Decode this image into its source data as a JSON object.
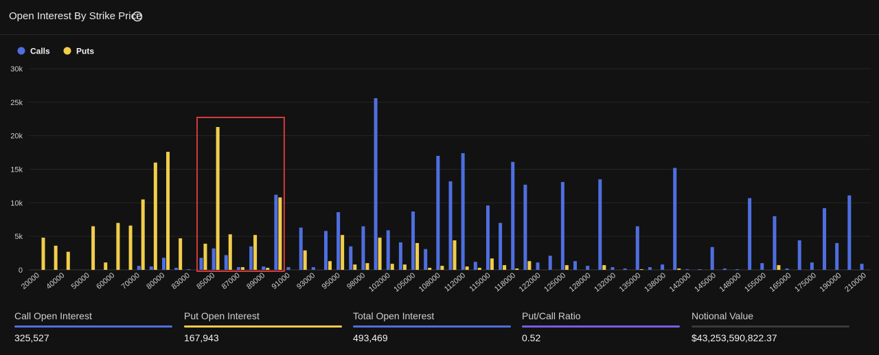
{
  "header": {
    "title": "Open Interest By Strike Price",
    "info_icon": "info-circle-icon"
  },
  "colors": {
    "calls": "#4f6fe0",
    "puts": "#f2cd4b",
    "highlight": "#d63a3a",
    "grid": "#262626",
    "axis_text": "#cfcfcf"
  },
  "chart_data": {
    "type": "bar",
    "legend": {
      "position": "top-left",
      "entries": [
        "Calls",
        "Puts"
      ]
    },
    "ylim": [
      0,
      30000
    ],
    "y_ticks": [
      "0",
      "5k",
      "10k",
      "15k",
      "20k",
      "25k",
      "30k"
    ],
    "grid": true,
    "series": [
      {
        "name": "Calls",
        "values": [
          0,
          0,
          0,
          0,
          0,
          0,
          0,
          0,
          600,
          500,
          1800,
          300,
          100,
          1800,
          3200,
          2200,
          400,
          3500,
          500,
          11200,
          400,
          6300,
          400,
          5800,
          8600,
          3500,
          6500,
          25600,
          5900,
          4100,
          8700,
          3100,
          17000,
          13200,
          17400,
          1200,
          9600,
          7000,
          16100,
          12700,
          1100,
          2100,
          13100,
          1300,
          600,
          13500,
          400,
          200,
          6500,
          400,
          800,
          15200,
          100,
          100,
          3400,
          200,
          100,
          10700,
          1000,
          8000,
          200,
          4400,
          1100,
          9200,
          4000,
          11100,
          900
        ]
      },
      {
        "name": "Puts",
        "values": [
          4800,
          3600,
          2700,
          0,
          6500,
          1100,
          7000,
          6600,
          10500,
          16000,
          17600,
          4700,
          0,
          3900,
          21300,
          5300,
          400,
          5200,
          300,
          10800,
          0,
          2900,
          0,
          1300,
          5200,
          800,
          1000,
          4800,
          900,
          800,
          4000,
          300,
          600,
          4400,
          500,
          300,
          1700,
          700,
          200,
          1300,
          0,
          0,
          700,
          0,
          0,
          700,
          0,
          0,
          100,
          0,
          0,
          200,
          0,
          0,
          0,
          0,
          0,
          0,
          0,
          700,
          0,
          0,
          0,
          0,
          0,
          0,
          0
        ]
      }
    ],
    "x_tick_labels": [
      "20000",
      "40000",
      "50000",
      "60000",
      "70000",
      "80000",
      "83000",
      "85000",
      "87000",
      "89000",
      "91000",
      "93000",
      "95000",
      "98000",
      "102000",
      "105000",
      "108000",
      "112000",
      "115000",
      "118000",
      "122000",
      "125000",
      "128000",
      "132000",
      "135000",
      "138000",
      "142000",
      "145000",
      "148000",
      "155000",
      "165000",
      "175000",
      "190000",
      "210000"
    ],
    "highlight_range": [
      13,
      19
    ]
  },
  "stats": [
    {
      "label": "Call Open Interest",
      "value": "325,527",
      "color": "#4f6fe0"
    },
    {
      "label": "Put Open Interest",
      "value": "167,943",
      "color": "#f2cd4b"
    },
    {
      "label": "Total Open Interest",
      "value": "493,469",
      "color": "#4f6fe0"
    },
    {
      "label": "Put/Call Ratio",
      "value": "0.52",
      "color": "#7a5ce6"
    },
    {
      "label": "Notional Value",
      "value": "$43,253,590,822.37",
      "color": "#3a3a3a"
    }
  ]
}
